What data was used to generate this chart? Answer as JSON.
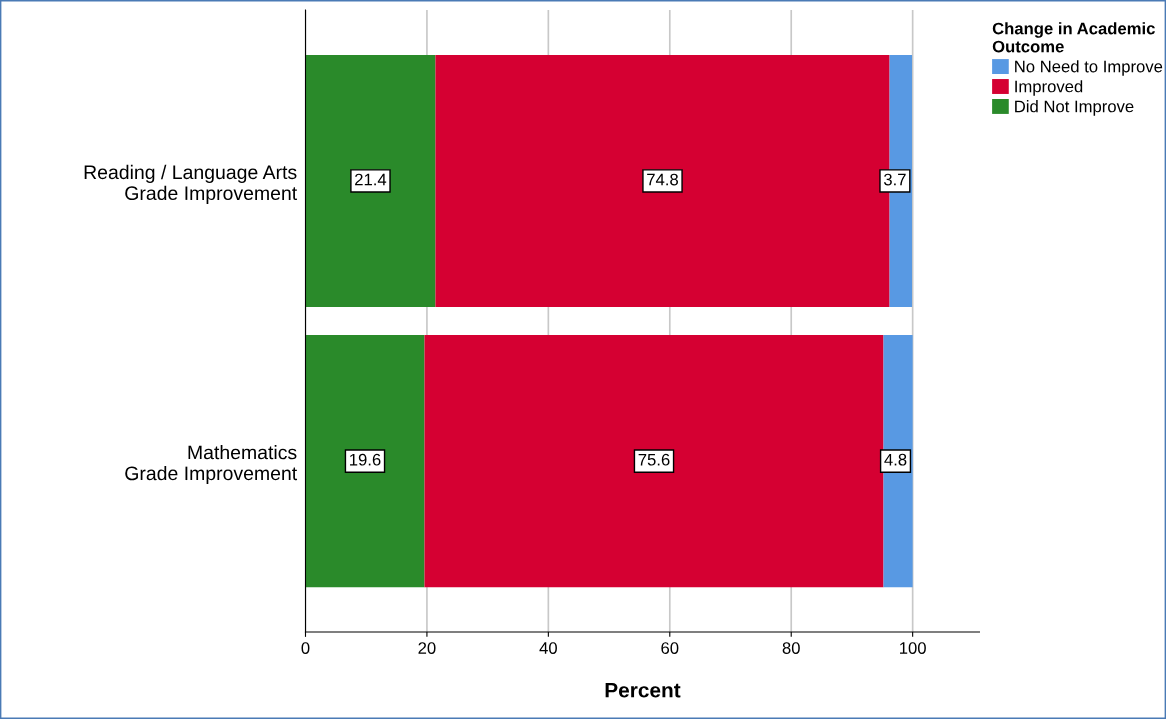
{
  "chart_data": {
    "type": "bar",
    "orientation": "horizontal",
    "stacked": true,
    "xlabel": "Percent",
    "legend_title": "Change in Academic\nOutcome",
    "categories": [
      "Reading / Language Arts\nGrade Improvement",
      "Mathematics\nGrade Improvement"
    ],
    "series": [
      {
        "name": "Did Not Improve",
        "color": "#2a8a2a",
        "values": [
          21.4,
          19.6
        ]
      },
      {
        "name": "Improved",
        "color": "#d50032",
        "values": [
          74.8,
          75.6
        ]
      },
      {
        "name": "No Need to Improve",
        "color": "#5899e3",
        "values": [
          3.7,
          4.8
        ]
      }
    ],
    "xlim": [
      0,
      111
    ],
    "xticks": [
      0,
      20,
      40,
      60,
      80,
      100
    ],
    "grid": "x",
    "legend": "top right",
    "data_labels": true
  }
}
